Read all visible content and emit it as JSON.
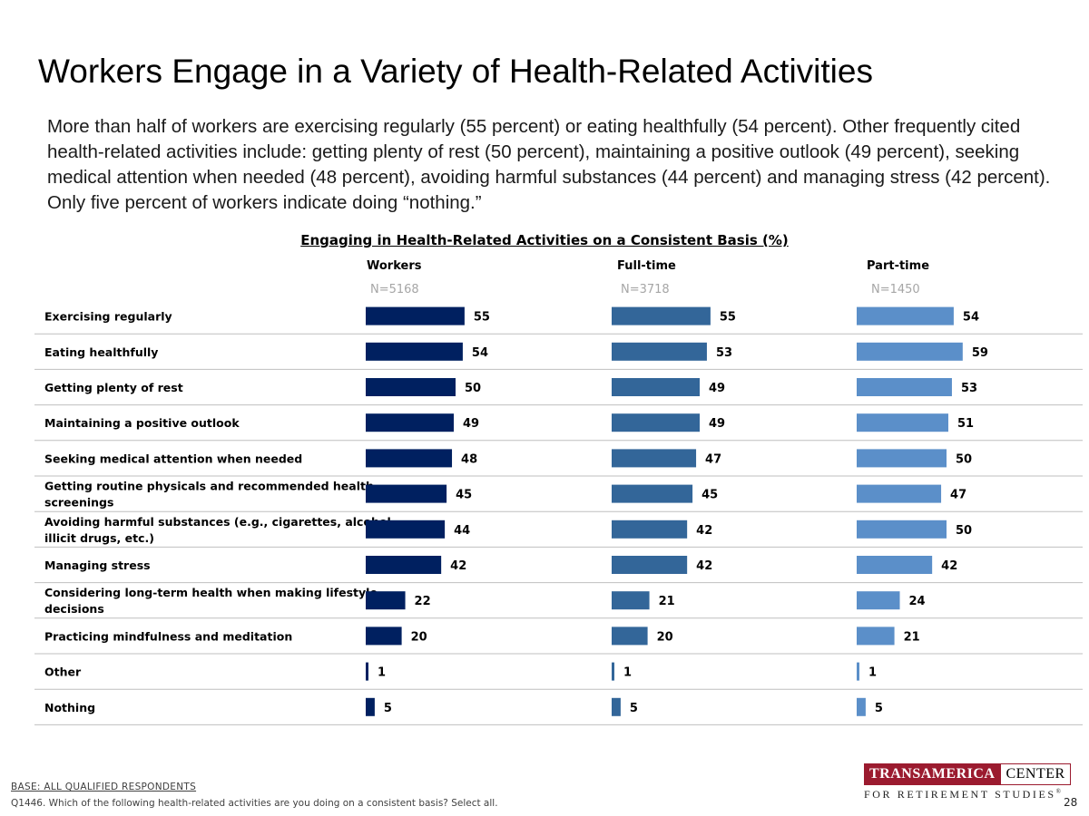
{
  "slide": {
    "title": "Workers Engage in a Variety of Health-Related Activities",
    "summary": "More than half of workers are exercising regularly (55 percent) or eating healthfully (54 percent). Other frequently cited health-related activities include: getting plenty of rest (50 percent), maintaining a positive outlook (49 percent), seeking medical attention when needed (48 percent), avoiding harmful substances (44 percent) and managing stress (42 percent). Only five percent of workers indicate doing “nothing.”",
    "base": "BASE:  ALL QUALIFIED RESPONDENTS",
    "question": "Q1446. Which of the following health-related activities are you doing on a consistent basis? Select all.",
    "page_number": "28"
  },
  "logo": {
    "left_text": "TRANSAMERICA",
    "right_text": "CENTER",
    "bottom_text": "FOR RETIREMENT STUDIES",
    "mark": "®"
  },
  "chart_data": {
    "type": "bar",
    "orientation": "horizontal",
    "title": "Engaging in Health-Related Activities on a Consistent Basis (%)",
    "categories": [
      "Exercising regularly",
      "Eating healthfully",
      "Getting plenty of rest",
      "Maintaining a positive outlook",
      "Seeking medical attention when needed",
      "Getting routine physicals and recommended health screenings",
      "Avoiding harmful substances (e.g., cigarettes, alcohol, illicit drugs, etc.)",
      "Managing stress",
      "Considering long-term health when making lifestyle decisions",
      "Practicing mindfulness and meditation",
      "Other",
      "Nothing"
    ],
    "category_lines": [
      [
        "Exercising regularly"
      ],
      [
        "Eating healthfully"
      ],
      [
        "Getting plenty of rest"
      ],
      [
        "Maintaining a positive outlook"
      ],
      [
        "Seeking medical attention when needed"
      ],
      [
        "Getting routine physicals and recommended health",
        "screenings"
      ],
      [
        "Avoiding harmful substances (e.g., cigarettes, alcohol,",
        "illicit drugs, etc.)"
      ],
      [
        "Managing stress"
      ],
      [
        "Considering long-term health when making lifestyle",
        "decisions"
      ],
      [
        "Practicing mindfulness and meditation"
      ],
      [
        "Other"
      ],
      [
        "Nothing"
      ]
    ],
    "series": [
      {
        "name": "Workers",
        "n": "N=5168",
        "color": "#002060",
        "values": [
          55,
          54,
          50,
          49,
          48,
          45,
          44,
          42,
          22,
          20,
          1,
          5
        ]
      },
      {
        "name": "Full-time",
        "n": "N=3718",
        "color": "#336699",
        "values": [
          55,
          53,
          49,
          49,
          47,
          45,
          42,
          42,
          21,
          20,
          1,
          5
        ]
      },
      {
        "name": "Part-time",
        "n": "N=1450",
        "color": "#5b8fc9",
        "values": [
          54,
          59,
          53,
          51,
          50,
          47,
          50,
          42,
          24,
          21,
          1,
          5
        ]
      }
    ],
    "grid": false,
    "legend": "none"
  }
}
